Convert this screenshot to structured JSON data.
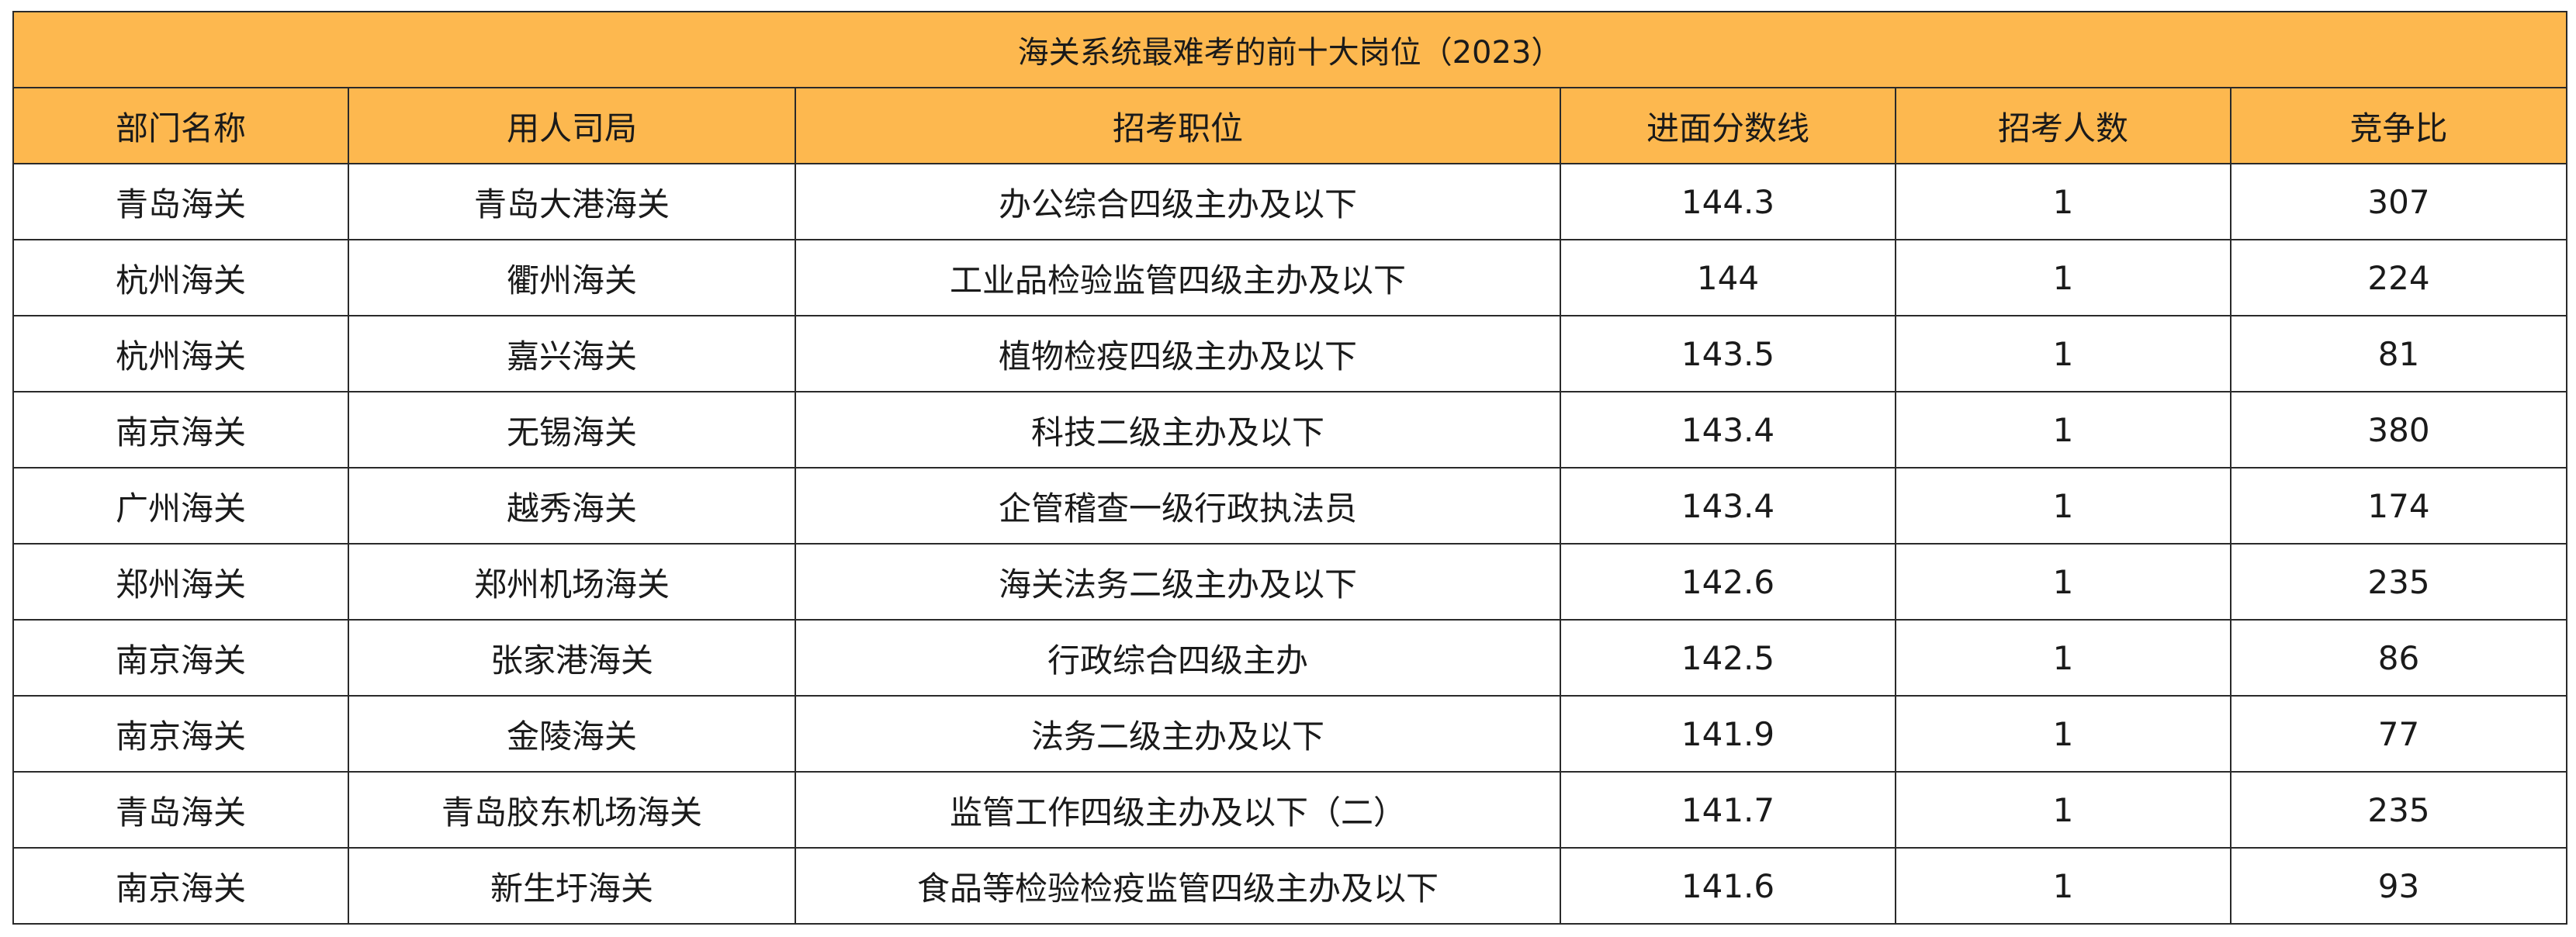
{
  "table": {
    "title": "海关系统最难考的前十大岗位（2023）",
    "header_color": "#FDB84F",
    "columns": [
      "部门名称",
      "用人司局",
      "招考职位",
      "进面分数线",
      "招考人数",
      "竞争比"
    ],
    "rows": [
      [
        "青岛海关",
        "青岛大港海关",
        "办公综合四级主办及以下",
        "144.3",
        "1",
        "307"
      ],
      [
        "杭州海关",
        "衢州海关",
        "工业品检验监管四级主办及以下",
        "144",
        "1",
        "224"
      ],
      [
        "杭州海关",
        "嘉兴海关",
        "植物检疫四级主办及以下",
        "143.5",
        "1",
        "81"
      ],
      [
        "南京海关",
        "无锡海关",
        "科技二级主办及以下",
        "143.4",
        "1",
        "380"
      ],
      [
        "广州海关",
        "越秀海关",
        "企管稽查一级行政执法员",
        "143.4",
        "1",
        "174"
      ],
      [
        "郑州海关",
        "郑州机场海关",
        "海关法务二级主办及以下",
        "142.6",
        "1",
        "235"
      ],
      [
        "南京海关",
        "张家港海关",
        "行政综合四级主办",
        "142.5",
        "1",
        "86"
      ],
      [
        "南京海关",
        "金陵海关",
        "法务二级主办及以下",
        "141.9",
        "1",
        "77"
      ],
      [
        "青岛海关",
        "青岛胶东机场海关",
        "监管工作四级主办及以下（二）",
        "141.7",
        "1",
        "235"
      ],
      [
        "南京海关",
        "新生圩海关",
        "食品等检验检疫监管四级主办及以下",
        "141.6",
        "1",
        "93"
      ]
    ]
  }
}
